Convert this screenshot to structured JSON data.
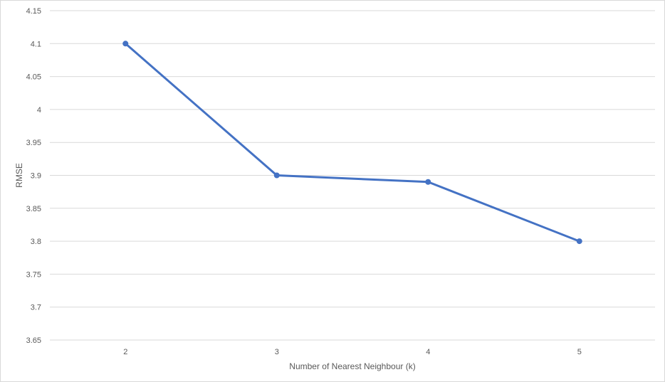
{
  "chart_data": {
    "type": "line",
    "title": "",
    "xlabel": "Number of Nearest Neighbour (k)",
    "ylabel": "RMSE",
    "categories": [
      "2",
      "3",
      "4",
      "5"
    ],
    "series": [
      {
        "values": [
          4.1,
          3.9,
          3.89,
          3.8
        ]
      }
    ],
    "ylim": [
      3.65,
      4.15
    ],
    "yticks": [
      "3.65",
      "3.7",
      "3.75",
      "3.8",
      "3.85",
      "3.9",
      "3.95",
      "4",
      "4.05",
      "4.1",
      "4.15"
    ],
    "grid": true,
    "legend": "none",
    "colors": {
      "line": "#4472c4",
      "grid": "#d9d9d9",
      "text": "#595959"
    }
  }
}
